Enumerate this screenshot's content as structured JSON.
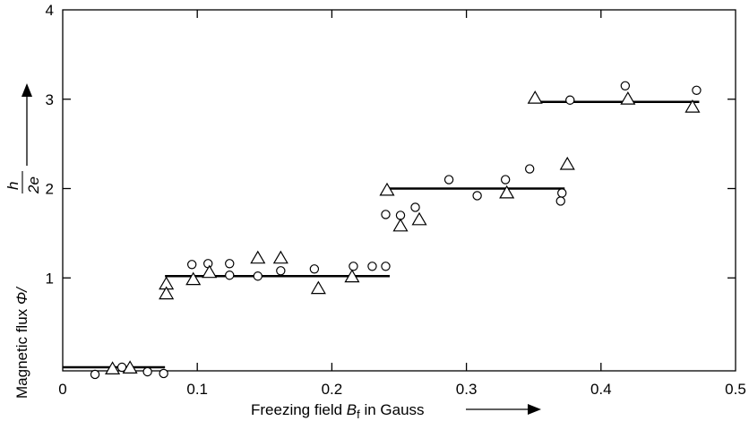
{
  "chart_data": {
    "type": "scatter",
    "xlabel": {
      "prefix": "Freezing field ",
      "symbol": "B",
      "subscript": "f",
      "suffix": " in Gauss"
    },
    "ylabel": {
      "prefix": "Magnetic flux ",
      "symbol": "Φ/",
      "frac_num": "h",
      "frac_den": "2e"
    },
    "xlim": [
      0,
      0.5
    ],
    "ylim": [
      -0.15,
      4
    ],
    "x_ticks": [
      0,
      0.1,
      0.2,
      0.3,
      0.4,
      0.5
    ],
    "x_tick_labels": [
      "0",
      "0.1",
      "0.2",
      "0.3",
      "0.4",
      "0.5"
    ],
    "y_ticks": [
      1,
      2,
      3,
      4
    ],
    "y_tick_labels": [
      "1",
      "2",
      "3",
      "4"
    ],
    "grid": false,
    "legend": "none",
    "series": [
      {
        "marker": "circle",
        "points": [
          [
            0.024,
            -0.08
          ],
          [
            0.044,
            0.0
          ],
          [
            0.063,
            -0.05
          ],
          [
            0.075,
            -0.07
          ],
          [
            0.096,
            1.15
          ],
          [
            0.108,
            1.16
          ],
          [
            0.124,
            1.16
          ],
          [
            0.124,
            1.03
          ],
          [
            0.145,
            1.02
          ],
          [
            0.162,
            1.08
          ],
          [
            0.187,
            1.1
          ],
          [
            0.216,
            1.13
          ],
          [
            0.23,
            1.13
          ],
          [
            0.24,
            1.13
          ],
          [
            0.24,
            1.71
          ],
          [
            0.251,
            1.7
          ],
          [
            0.262,
            1.79
          ],
          [
            0.287,
            2.1
          ],
          [
            0.308,
            1.92
          ],
          [
            0.329,
            2.1
          ],
          [
            0.347,
            2.22
          ],
          [
            0.371,
            1.95
          ],
          [
            0.37,
            1.86
          ],
          [
            0.377,
            2.99
          ],
          [
            0.418,
            3.15
          ],
          [
            0.471,
            3.1
          ]
        ]
      },
      {
        "marker": "triangle",
        "points": [
          [
            0.037,
            -0.02
          ],
          [
            0.05,
            -0.01
          ],
          [
            0.077,
            0.93
          ],
          [
            0.077,
            0.82
          ],
          [
            0.097,
            0.98
          ],
          [
            0.109,
            1.06
          ],
          [
            0.145,
            1.22
          ],
          [
            0.162,
            1.22
          ],
          [
            0.19,
            0.88
          ],
          [
            0.215,
            1.01
          ],
          [
            0.241,
            1.98
          ],
          [
            0.251,
            1.58
          ],
          [
            0.265,
            1.65
          ],
          [
            0.33,
            1.95
          ],
          [
            0.375,
            2.27
          ],
          [
            0.351,
            3.01
          ],
          [
            0.42,
            3.0
          ],
          [
            0.468,
            2.91
          ]
        ]
      }
    ],
    "steps": [
      {
        "x0": 0.0,
        "x1": 0.076,
        "y": 0.0
      },
      {
        "x0": 0.076,
        "x1": 0.243,
        "y": 1.02
      },
      {
        "x0": 0.243,
        "x1": 0.373,
        "y": 2.0
      },
      {
        "x0": 0.35,
        "x1": 0.473,
        "y": 2.97
      }
    ]
  }
}
